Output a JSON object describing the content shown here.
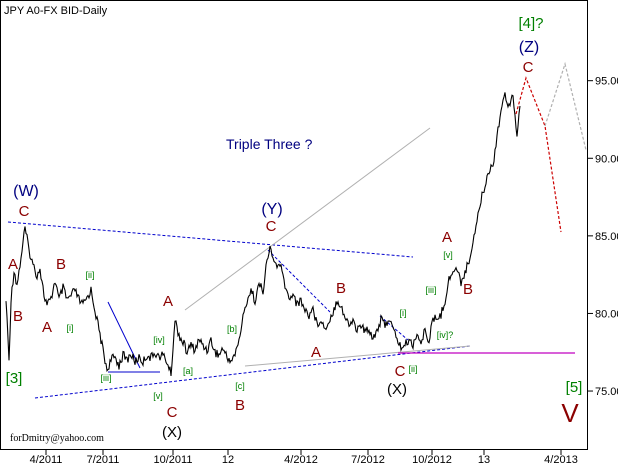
{
  "chart_data": {
    "type": "line",
    "title": "JPY A0-FX BID-Daily",
    "note": "Triple Three ?",
    "credit": "forDmitry@yahoo.com",
    "x_ticks": [
      "4/2011",
      "7/2011",
      "10/2011",
      "12",
      "4/2012",
      "7/2012",
      "10/2012",
      "13",
      "4/2013"
    ],
    "y_ticks": [
      "75.00",
      "80.00",
      "85.00",
      "90.00",
      "95.00"
    ],
    "ylim": [
      71.2,
      100.2
    ],
    "colors": {
      "price": "#000000",
      "major_wave": "#000080",
      "minor_wave": "#8b0000",
      "sub_wave": "#008000",
      "channel": "#0000cd",
      "horizontal": "#c000c0",
      "projection": "#cc0000",
      "alt_projection": "#b0b0b0",
      "trend": "#b0b0b0"
    },
    "waves": [
      {
        "text": "(W)",
        "style": "major"
      },
      {
        "text": "C",
        "style": "minor"
      },
      {
        "text": "A",
        "style": "minor"
      },
      {
        "text": "B",
        "style": "minor"
      },
      {
        "text": "B",
        "style": "minor"
      },
      {
        "text": "A",
        "style": "minor"
      },
      {
        "text": "[ii]",
        "style": "sub"
      },
      {
        "text": "[i]",
        "style": "sub"
      },
      {
        "text": "[3]",
        "style": "sub-big"
      },
      {
        "text": "[iii]",
        "style": "sub"
      },
      {
        "text": "[iv]",
        "style": "sub"
      },
      {
        "text": "[v]",
        "style": "sub"
      },
      {
        "text": "C",
        "style": "minor"
      },
      {
        "text": "(X)",
        "style": "major-black"
      },
      {
        "text": "A",
        "style": "minor"
      },
      {
        "text": "[a]",
        "style": "sub"
      },
      {
        "text": "[b]",
        "style": "sub"
      },
      {
        "text": "[c]",
        "style": "sub"
      },
      {
        "text": "B",
        "style": "minor"
      },
      {
        "text": "(Y)",
        "style": "major"
      },
      {
        "text": "C",
        "style": "minor"
      },
      {
        "text": "B",
        "style": "minor"
      },
      {
        "text": "A",
        "style": "minor"
      },
      {
        "text": "[i]",
        "style": "sub"
      },
      {
        "text": "[ii]",
        "style": "sub"
      },
      {
        "text": "C",
        "style": "minor"
      },
      {
        "text": "(X)",
        "style": "major-black"
      },
      {
        "text": "[iii]",
        "style": "sub"
      },
      {
        "text": "[iv]?",
        "style": "sub"
      },
      {
        "text": "A",
        "style": "minor"
      },
      {
        "text": "[v]",
        "style": "sub"
      },
      {
        "text": "B",
        "style": "minor"
      },
      {
        "text": "[4]?",
        "style": "sub-big"
      },
      {
        "text": "(Z)",
        "style": "major"
      },
      {
        "text": "C",
        "style": "minor"
      },
      {
        "text": "[5]",
        "style": "sub-big"
      },
      {
        "text": "V",
        "style": "big-red"
      }
    ]
  }
}
